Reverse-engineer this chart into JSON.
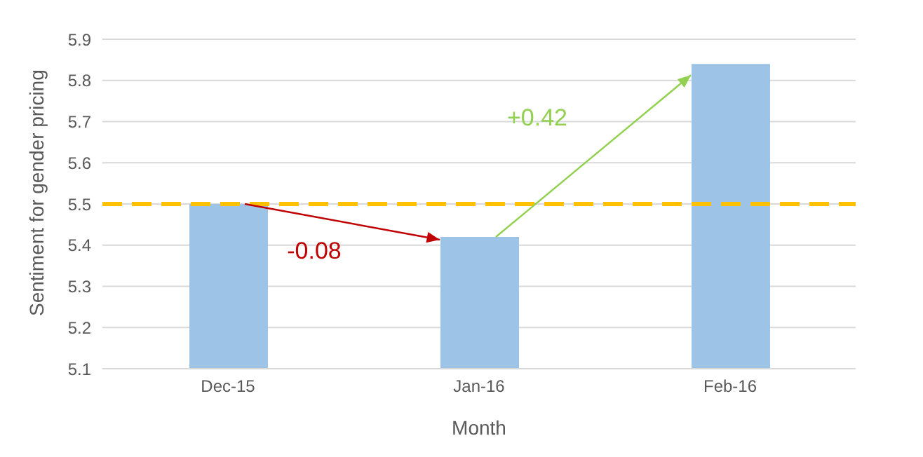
{
  "chart_data": {
    "type": "bar",
    "xlabel": "Month",
    "ylabel": "Sentiment for gender pricing",
    "categories": [
      "Dec-15",
      "Jan-16",
      "Feb-16"
    ],
    "values": [
      5.5,
      5.42,
      5.84
    ],
    "color": "#9dc3e6",
    "ylim": [
      5.1,
      5.9
    ],
    "yticks": [
      {
        "value": 5.1,
        "label": "5.1"
      },
      {
        "value": 5.2,
        "label": "5.2"
      },
      {
        "value": 5.3,
        "label": "5.3"
      },
      {
        "value": 5.4,
        "label": "5.4"
      },
      {
        "value": 5.5,
        "label": "5.5"
      },
      {
        "value": 5.6,
        "label": "5.6"
      },
      {
        "value": 5.7,
        "label": "5.7"
      },
      {
        "value": 5.8,
        "label": "5.8"
      },
      {
        "value": 5.9,
        "label": "5.9"
      }
    ],
    "grid": "y",
    "ref_lines": [
      {
        "axis": "y",
        "value": 5.5,
        "color": "#ffc000",
        "line_style": "dashed"
      }
    ],
    "annotations": [
      "-0.08",
      "+0.42"
    ]
  }
}
